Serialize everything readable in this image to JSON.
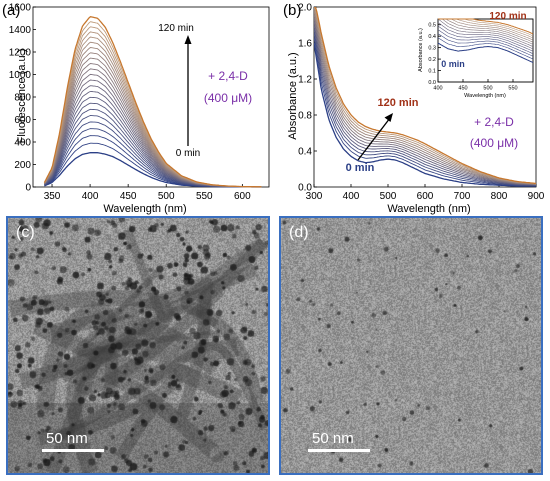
{
  "colors": {
    "early": "#2b3f86",
    "late": "#c6a07a",
    "last": "#c7782f",
    "arrow": "#000000",
    "time_last": "#a13218",
    "time_first": "#2b3f86",
    "reagent": "#7a2fa8",
    "panel_border": "#3a6fc0"
  },
  "chart_data": [
    {
      "id": "a",
      "type": "line",
      "panel_label": "(a)",
      "xlabel": "Wavelength (nm)",
      "ylabel": "Fluorescence (a.u.)",
      "xlim": [
        325,
        635
      ],
      "ylim": [
        0,
        1600
      ],
      "xticks": [
        350,
        400,
        450,
        500,
        550,
        600
      ],
      "yticks": [
        0,
        200,
        400,
        600,
        800,
        1000,
        1200,
        1400,
        1600
      ],
      "n_curves": 24,
      "first_curve": {
        "x": [
          340,
          350,
          360,
          370,
          380,
          390,
          400,
          410,
          420,
          430,
          440,
          450,
          460,
          470,
          480,
          490,
          500,
          520,
          540,
          560,
          580,
          600,
          620
        ],
        "y": [
          10,
          40,
          105,
          185,
          250,
          290,
          305,
          305,
          292,
          270,
          235,
          195,
          155,
          118,
          86,
          60,
          40,
          17,
          8,
          4,
          2,
          1,
          0
        ]
      },
      "last_curve": {
        "x": [
          340,
          350,
          360,
          370,
          380,
          390,
          400,
          410,
          420,
          430,
          440,
          450,
          460,
          470,
          480,
          490,
          500,
          520,
          540,
          560,
          580,
          600,
          620
        ],
        "y": [
          40,
          170,
          480,
          880,
          1220,
          1430,
          1515,
          1500,
          1420,
          1280,
          1110,
          930,
          750,
          580,
          430,
          310,
          210,
          100,
          45,
          20,
          9,
          4,
          2
        ]
      },
      "annotations": {
        "start": "0 min",
        "end": "120 min",
        "reagent": "+ 2,4-D",
        "concentration": "(400 μM)"
      }
    },
    {
      "id": "b",
      "type": "line",
      "panel_label": "(b)",
      "xlabel": "Wavelength (nm)",
      "ylabel": "Absorbance (a.u.)",
      "xlim": [
        300,
        900
      ],
      "ylim": [
        0,
        2.0
      ],
      "xticks": [
        300,
        400,
        500,
        600,
        700,
        800,
        900
      ],
      "yticks": [
        0.0,
        0.4,
        0.8,
        1.2,
        1.6,
        2.0
      ],
      "n_curves": 13,
      "first_curve": {
        "x": [
          300,
          320,
          340,
          360,
          380,
          400,
          420,
          440,
          460,
          480,
          500,
          520,
          540,
          560,
          580,
          600,
          650,
          700,
          750,
          800,
          850,
          900
        ],
        "y": [
          1.6,
          1.08,
          0.75,
          0.55,
          0.42,
          0.34,
          0.29,
          0.27,
          0.28,
          0.3,
          0.31,
          0.3,
          0.27,
          0.23,
          0.19,
          0.15,
          0.09,
          0.05,
          0.03,
          0.02,
          0.01,
          0.01
        ]
      },
      "last_curve": {
        "x": [
          300,
          320,
          340,
          360,
          380,
          400,
          420,
          440,
          460,
          480,
          500,
          520,
          540,
          560,
          580,
          600,
          650,
          700,
          750,
          800,
          850,
          900
        ],
        "y": [
          2.1,
          1.7,
          1.35,
          1.1,
          0.92,
          0.8,
          0.72,
          0.67,
          0.64,
          0.62,
          0.61,
          0.6,
          0.58,
          0.55,
          0.52,
          0.48,
          0.37,
          0.26,
          0.17,
          0.1,
          0.06,
          0.04
        ]
      },
      "annotations": {
        "start": "0 min",
        "end": "120 min",
        "reagent": "+ 2,4-D",
        "concentration": "(400 μM)"
      },
      "inset": {
        "xlabel": "Wavelength (nm)",
        "ylabel": "Absorbance (a.u.)",
        "xlim": [
          400,
          590
        ],
        "ylim": [
          0.0,
          0.55
        ],
        "xticks": [
          400,
          450,
          500,
          550
        ],
        "yticks": [
          0.0,
          0.1,
          0.2,
          0.3,
          0.4,
          0.5
        ],
        "start": "0 min",
        "end": "120 min"
      }
    }
  ],
  "micrographs": [
    {
      "id": "c",
      "label": "(c)",
      "scale": "50 nm"
    },
    {
      "id": "d",
      "label": "(d)",
      "scale": "50 nm"
    }
  ]
}
